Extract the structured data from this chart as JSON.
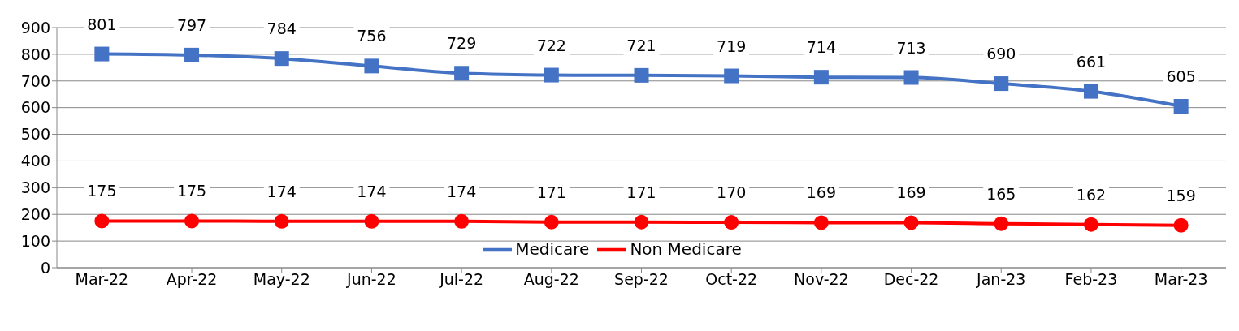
{
  "chart_data": {
    "type": "line",
    "categories": [
      "Mar-22",
      "Apr-22",
      "May-22",
      "Jun-22",
      "Jul-22",
      "Aug-22",
      "Sep-22",
      "Oct-22",
      "Nov-22",
      "Dec-22",
      "Jan-23",
      "Feb-23",
      "Mar-23"
    ],
    "series": [
      {
        "name": "Medicare",
        "color": "#4472c4",
        "marker": "square",
        "values": [
          801,
          797,
          784,
          756,
          729,
          722,
          721,
          719,
          714,
          713,
          690,
          661,
          605
        ]
      },
      {
        "name": "Non Medicare",
        "color": "#ff0000",
        "marker": "circle",
        "values": [
          175,
          175,
          174,
          174,
          174,
          171,
          171,
          170,
          169,
          169,
          165,
          162,
          159
        ]
      }
    ],
    "ylim": [
      0,
      900
    ],
    "yticks": [
      0,
      100,
      200,
      300,
      400,
      500,
      600,
      700,
      800,
      900
    ],
    "grid": "y",
    "legend": "bottom",
    "data_labels": true,
    "line_style": "solid"
  }
}
